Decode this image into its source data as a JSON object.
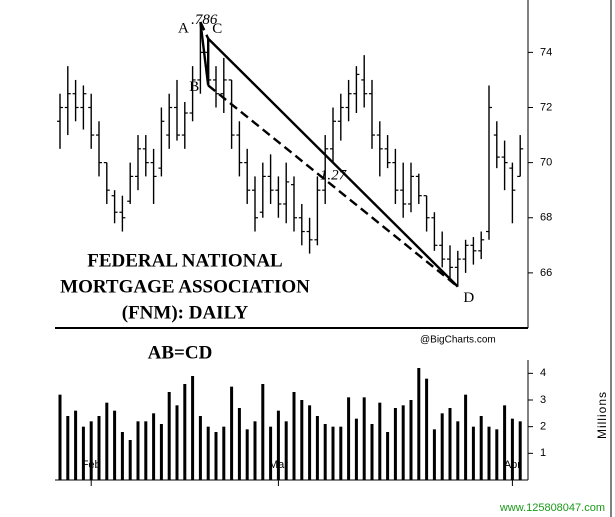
{
  "chart_data": [
    {
      "type": "ohlc",
      "title_lines": [
        "FEDERAL NATIONAL",
        "MORTGAGE ASSOCIATION",
        "(FNM): DAILY"
      ],
      "pattern_title": "AB=CD",
      "pattern_labels": [
        "A",
        "B",
        "C",
        "D"
      ],
      "ratio_labels": [
        ".786",
        "1.27"
      ],
      "source": "@BigCharts.com",
      "watermark": "www.125808047.com",
      "ylim": [
        64,
        75.9
      ],
      "yticks": [
        66,
        68,
        70,
        72,
        74
      ],
      "open": [
        71.5,
        72,
        72.5,
        72,
        72,
        71,
        70,
        68.8,
        68.2,
        68.6,
        69.5,
        70.5,
        70,
        69.8,
        71,
        72,
        71,
        71.8,
        73,
        74,
        73,
        72.5,
        73,
        71,
        70,
        69,
        68.2,
        69.5,
        69,
        68.5,
        69.2,
        68,
        67.5,
        67.2,
        69,
        70.5,
        71.5,
        72,
        72.5,
        73,
        72.5,
        71,
        70.5,
        70,
        69,
        68.5,
        69.5,
        68.8,
        68,
        67,
        66.5,
        66.2,
        66.5,
        67,
        66.8,
        67.5,
        71,
        70.2,
        69.8,
        69.5
      ],
      "high": [
        72.5,
        73.5,
        73,
        72.8,
        72.5,
        71.5,
        70,
        69,
        68.8,
        70,
        71,
        71,
        70.5,
        72,
        72.5,
        73,
        72.2,
        73.5,
        75.1,
        74.5,
        73.5,
        73.8,
        73,
        71.5,
        70.5,
        69.5,
        70,
        70.3,
        69.5,
        70,
        69.5,
        68.5,
        68,
        69.5,
        71,
        72,
        72.5,
        73,
        73.5,
        73.9,
        73,
        71.5,
        71,
        70.5,
        70,
        70,
        69.6,
        68.8,
        68.2,
        67.5,
        67,
        66.8,
        67.2,
        67.3,
        67.5,
        72.8,
        71.5,
        70.8,
        70,
        71
      ],
      "low": [
        70.5,
        71,
        71.5,
        71.2,
        70.5,
        69.5,
        68.5,
        67.8,
        67.5,
        68.5,
        69,
        69.5,
        68.5,
        69.5,
        70.5,
        70.8,
        70.5,
        71.5,
        72.5,
        72.8,
        72,
        71.8,
        70.5,
        69.5,
        68.5,
        67.5,
        68,
        68.5,
        68,
        67.8,
        67.5,
        67,
        66.7,
        67,
        68.5,
        70,
        70.8,
        71.5,
        71.8,
        72,
        70.5,
        69.5,
        69.8,
        68.5,
        68,
        68.2,
        68.5,
        67.5,
        66.8,
        66.2,
        65.8,
        65.5,
        66,
        66.3,
        66.5,
        67.2,
        69.8,
        69,
        67.8,
        69.5
      ],
      "close": [
        72,
        72.5,
        72,
        72.5,
        71,
        70,
        69,
        68.2,
        68,
        69.5,
        70.5,
        70,
        69.5,
        71.5,
        72,
        71,
        71.8,
        73,
        74,
        73,
        72.5,
        73,
        71,
        70,
        69,
        68,
        69.5,
        69,
        68.5,
        69.3,
        68,
        67.5,
        67.2,
        69,
        70.5,
        71.5,
        72,
        72.5,
        73.2,
        72.5,
        71,
        70.5,
        70,
        69,
        68.5,
        69.5,
        68.8,
        68,
        67,
        66.5,
        66.2,
        66.5,
        67,
        66.8,
        67.2,
        72,
        70.2,
        70,
        69,
        70.5
      ]
    },
    {
      "type": "bar",
      "y_label": "Millions",
      "ylim": [
        0,
        4.5
      ],
      "yticks": [
        1,
        2,
        3,
        4
      ],
      "categories": [
        null,
        null,
        null,
        null,
        "Feb",
        null,
        null,
        null,
        null,
        null,
        null,
        null,
        null,
        null,
        null,
        null,
        null,
        null,
        null,
        null,
        null,
        null,
        null,
        null,
        null,
        null,
        null,
        null,
        "Mar",
        null,
        null,
        null,
        null,
        null,
        null,
        null,
        null,
        null,
        null,
        null,
        null,
        null,
        null,
        null,
        null,
        null,
        null,
        null,
        null,
        null,
        null,
        null,
        null,
        null,
        null,
        null,
        null,
        null,
        "Apr",
        null
      ],
      "values": [
        3.2,
        2.4,
        2.6,
        2.0,
        2.2,
        2.4,
        2.9,
        2.6,
        1.8,
        1.5,
        2.2,
        2.2,
        2.5,
        2.1,
        3.3,
        2.8,
        3.6,
        3.9,
        2.4,
        2.0,
        1.8,
        2.0,
        3.5,
        2.7,
        1.9,
        2.2,
        3.6,
        2.0,
        2.6,
        2.2,
        3.3,
        3.0,
        2.8,
        2.4,
        2.1,
        2.0,
        2.0,
        3.1,
        2.3,
        3.1,
        2.1,
        2.9,
        1.8,
        2.7,
        2.8,
        3.0,
        4.2,
        3.8,
        1.9,
        2.5,
        2.7,
        2.2,
        3.2,
        2.0,
        2.4,
        2.0,
        1.9,
        2.8,
        2.3,
        2.2
      ]
    }
  ]
}
